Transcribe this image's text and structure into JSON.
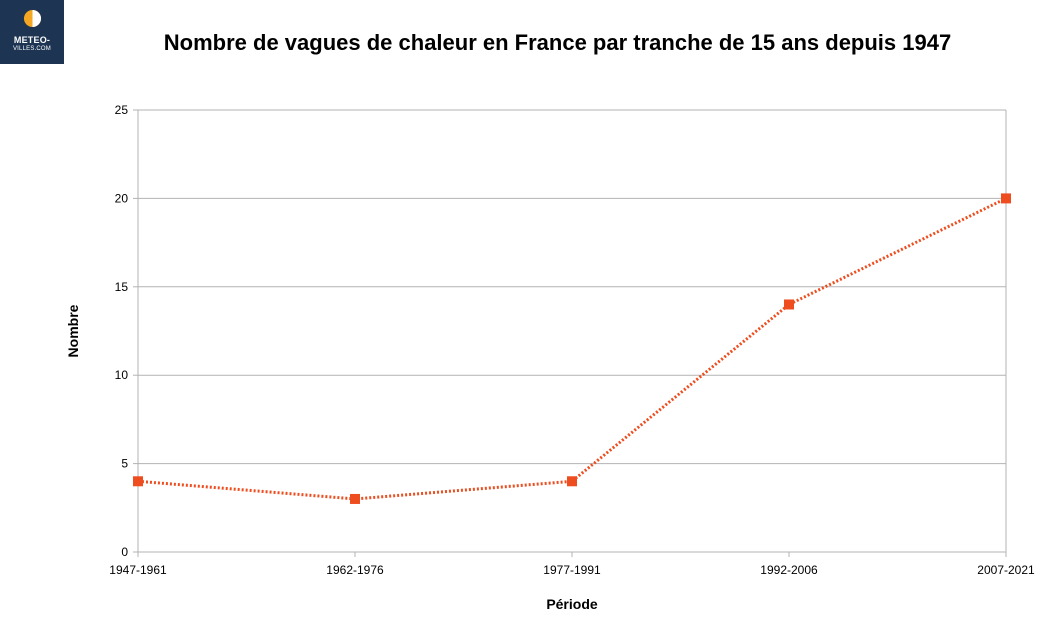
{
  "logo": {
    "line1": "METEO-",
    "line2": "VILLES.COM",
    "background_color": "#1d3553"
  },
  "chart_data": {
    "type": "line",
    "title": "Nombre de vagues de chaleur en France par tranche de 15 ans depuis 1947",
    "xlabel": "Période",
    "ylabel": "Nombre",
    "categories": [
      "1947-1961",
      "1962-1976",
      "1977-1991",
      "1992-2006",
      "2007-2021"
    ],
    "series": [
      {
        "values": [
          4,
          3,
          4,
          14,
          20
        ],
        "color": "#ee4d1f",
        "line_style": "dotted",
        "marker": "square"
      }
    ],
    "ylim": [
      0,
      25
    ],
    "yticks": [
      0,
      5,
      10,
      15,
      20,
      25
    ],
    "grid": true,
    "legend": "none"
  }
}
